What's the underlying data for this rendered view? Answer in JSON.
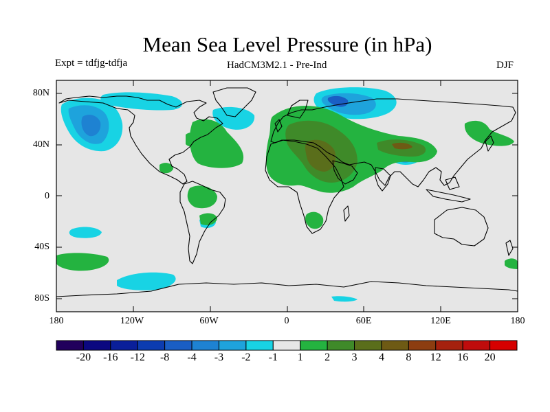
{
  "title": "Mean Sea Level Pressure (in hPa)",
  "subtitle_left": "Expt = tdfjg-tdfja",
  "subtitle_center": "HadCM3M2.1 - Pre-Ind",
  "subtitle_right": "DJF",
  "lat_labels": [
    "80N",
    "40N",
    "0",
    "40S",
    "80S"
  ],
  "lon_labels": [
    "180",
    "120W",
    "60W",
    "0",
    "60E",
    "120E",
    "180"
  ],
  "colorbar": {
    "colors": [
      "#21005c",
      "#0b0880",
      "#0a1f9a",
      "#0c3cb0",
      "#1a5ec4",
      "#1e82d2",
      "#1ea3dc",
      "#18d3e4",
      "#e6e6e6",
      "#24b340",
      "#3f8a29",
      "#5a6e1b",
      "#6e5a14",
      "#8c3d10",
      "#a5210e",
      "#bf0c0c",
      "#d60000"
    ],
    "labels": [
      "-20",
      "-16",
      "-12",
      "-8",
      "-4",
      "-3",
      "-2",
      "-1",
      "1",
      "2",
      "3",
      "4",
      "8",
      "12",
      "16",
      "20"
    ]
  },
  "colors": {
    "land_ocean_background": "#e6e6e6",
    "coastline": "#000000",
    "anomaly_pos_1": "#24b340",
    "anomaly_pos_2": "#3f8a29",
    "anomaly_pos_3": "#5a6e1b",
    "anomaly_neg_1": "#18d3e4",
    "anomaly_neg_2": "#1ea3dc",
    "anomaly_neg_3": "#1e82d2",
    "anomaly_neg_4": "#1a5ec4"
  }
}
